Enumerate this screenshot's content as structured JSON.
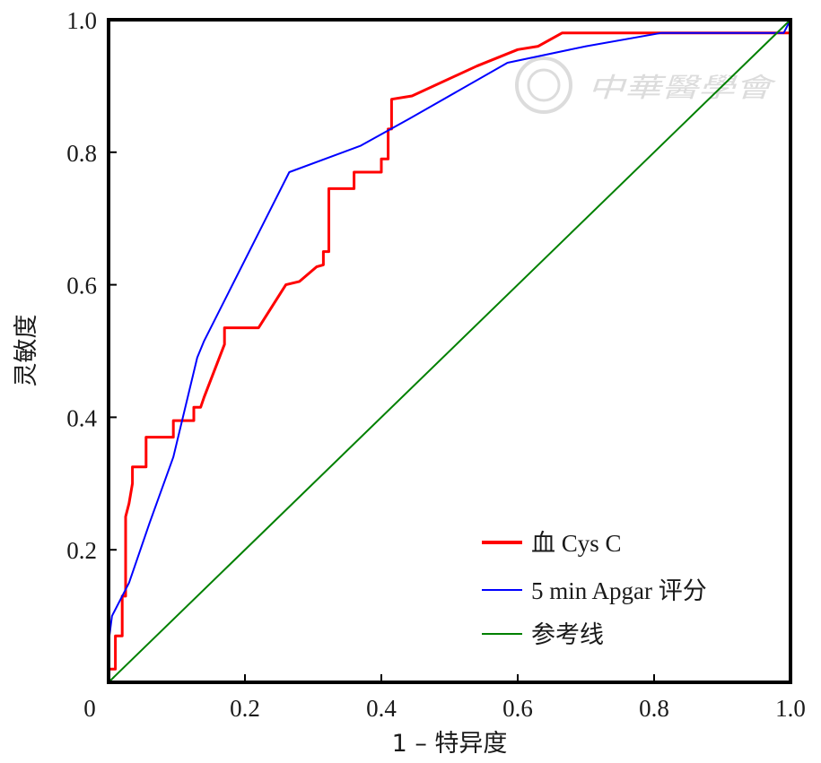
{
  "chart_data": {
    "type": "line",
    "xlabel": "1 – 特异度",
    "ylabel": "灵敏度",
    "xlim": [
      0,
      1
    ],
    "ylim": [
      0,
      1
    ],
    "x_ticks": [
      "0",
      "0.2",
      "0.4",
      "0.6",
      "0.8",
      "1.0"
    ],
    "y_ticks": [
      "0.2",
      "0.4",
      "0.6",
      "0.8",
      "1.0"
    ],
    "grid": false,
    "legend_position": "bottom-right",
    "series": [
      {
        "name": "血 Cys C",
        "color": "#ff0000",
        "points": [
          [
            0.0,
            0.02
          ],
          [
            0.01,
            0.02
          ],
          [
            0.01,
            0.07
          ],
          [
            0.02,
            0.07
          ],
          [
            0.02,
            0.13
          ],
          [
            0.025,
            0.13
          ],
          [
            0.025,
            0.25
          ],
          [
            0.03,
            0.27
          ],
          [
            0.035,
            0.3
          ],
          [
            0.035,
            0.325
          ],
          [
            0.055,
            0.325
          ],
          [
            0.055,
            0.37
          ],
          [
            0.095,
            0.37
          ],
          [
            0.095,
            0.395
          ],
          [
            0.125,
            0.395
          ],
          [
            0.125,
            0.415
          ],
          [
            0.135,
            0.415
          ],
          [
            0.14,
            0.43
          ],
          [
            0.17,
            0.51
          ],
          [
            0.17,
            0.535
          ],
          [
            0.22,
            0.535
          ],
          [
            0.26,
            0.6
          ],
          [
            0.28,
            0.605
          ],
          [
            0.305,
            0.627
          ],
          [
            0.315,
            0.63
          ],
          [
            0.315,
            0.65
          ],
          [
            0.323,
            0.65
          ],
          [
            0.323,
            0.745
          ],
          [
            0.36,
            0.745
          ],
          [
            0.36,
            0.77
          ],
          [
            0.4,
            0.77
          ],
          [
            0.4,
            0.79
          ],
          [
            0.41,
            0.79
          ],
          [
            0.41,
            0.835
          ],
          [
            0.415,
            0.835
          ],
          [
            0.415,
            0.88
          ],
          [
            0.445,
            0.885
          ],
          [
            0.54,
            0.93
          ],
          [
            0.6,
            0.955
          ],
          [
            0.63,
            0.96
          ],
          [
            0.665,
            0.98
          ],
          [
            1.0,
            0.98
          ]
        ]
      },
      {
        "name": "5 min Apgar 评分",
        "color": "#0000ff",
        "points": [
          [
            0.0,
            0.06
          ],
          [
            0.005,
            0.1
          ],
          [
            0.03,
            0.15
          ],
          [
            0.06,
            0.24
          ],
          [
            0.095,
            0.34
          ],
          [
            0.13,
            0.49
          ],
          [
            0.14,
            0.515
          ],
          [
            0.265,
            0.77
          ],
          [
            0.37,
            0.81
          ],
          [
            0.44,
            0.85
          ],
          [
            0.585,
            0.935
          ],
          [
            0.7,
            0.96
          ],
          [
            0.81,
            0.98
          ],
          [
            0.99,
            0.98
          ],
          [
            1.0,
            1.0
          ]
        ]
      },
      {
        "name": "参考线",
        "color": "#008000",
        "points": [
          [
            0,
            0
          ],
          [
            1,
            1
          ]
        ]
      }
    ]
  },
  "watermark": {
    "text": "中華醫學會"
  }
}
